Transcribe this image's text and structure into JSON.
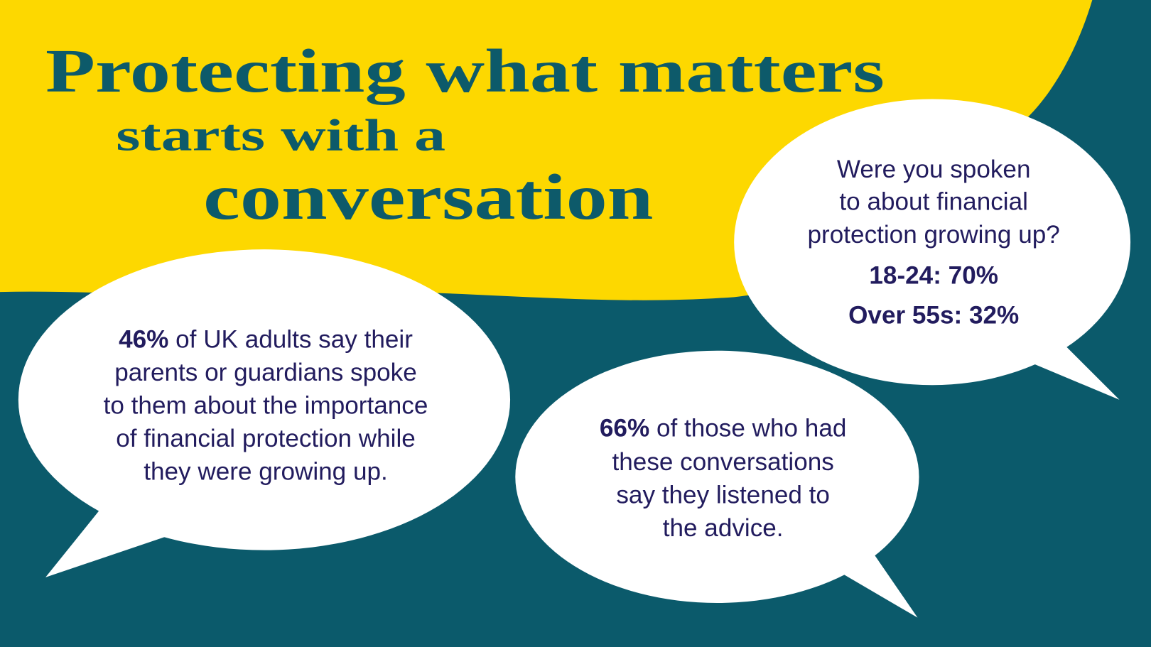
{
  "title": {
    "line1": "Protecting what matters",
    "line2": "starts with a",
    "line3": "conversation"
  },
  "bubbles": [
    {
      "highlight": "46%",
      "lines": [
        " of UK adults say their",
        "parents or guardians spoke",
        "to them about the importance",
        "of financial protection while",
        "they were growing up."
      ]
    },
    {
      "highlight": "66%",
      "lines": [
        " of those who had",
        "these conversations",
        "say they listened to",
        "the advice."
      ]
    },
    {
      "question": [
        "Were you spoken",
        "to about financial",
        "protection growing up?"
      ],
      "stats": [
        "18-24: 70%",
        "Over 55s: 32%"
      ]
    }
  ]
}
